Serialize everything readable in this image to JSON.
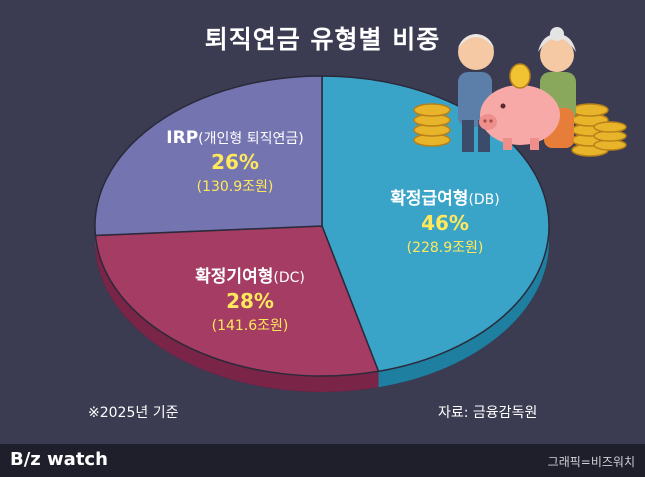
{
  "header": {
    "title": "퇴직연금 유형별 비중"
  },
  "chart_data": {
    "type": "pie",
    "categories": [
      "확정급여형(DB)",
      "확정기여형(DC)",
      "IRP(개인형 퇴직연금)"
    ],
    "values": [
      46,
      28,
      26
    ],
    "amounts": [
      "(228.9조원)",
      "(141.6조원)",
      "(130.9조원)"
    ],
    "colors": [
      "#3aa4c8",
      "#a53c63",
      "#7474b0"
    ],
    "side_colors": [
      "#1f7fa0",
      "#7a2447",
      "#54548a"
    ]
  },
  "labels": {
    "db": {
      "name": "확정급여형",
      "sub": "(DB)",
      "pct": "46%",
      "amt": "(228.9조원)"
    },
    "dc": {
      "name": "확정기여형",
      "sub": "(DC)",
      "pct": "28%",
      "amt": "(141.6조원)"
    },
    "irp": {
      "name": "IRP",
      "sub": "(개인형 퇴직연금)",
      "pct": "26%",
      "amt": "(130.9조원)"
    }
  },
  "notes": {
    "basis": "※2025년 기준",
    "source": "자료: 금융감독원"
  },
  "footer": {
    "logo_b": "B",
    "logo_rest": "/z watch",
    "credit": "그래픽=비즈워치"
  }
}
